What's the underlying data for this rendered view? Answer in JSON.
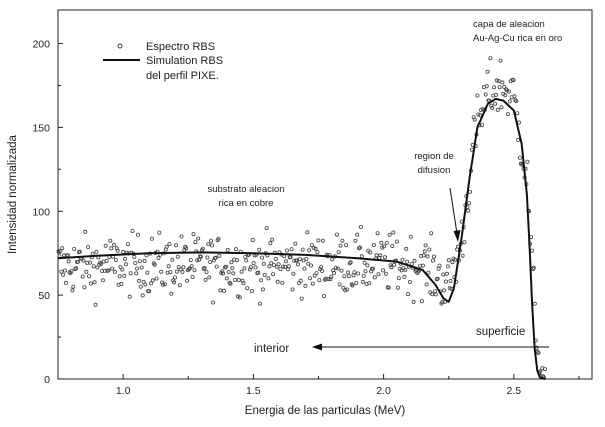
{
  "chart_data": {
    "type": "scatter",
    "title": "",
    "xlabel": "Energia de las particulas   (MeV)",
    "ylabel": "Intensidad normalizada",
    "xlim": [
      0.75,
      2.8
    ],
    "ylim": [
      0,
      220
    ],
    "xticks": [
      1.0,
      1.5,
      2.0,
      2.5
    ],
    "xtick_labels": [
      "1.0",
      "1.5",
      "2.0",
      "2.5"
    ],
    "yticks": [
      0,
      50,
      100,
      150,
      200
    ],
    "ytick_labels": [
      "0",
      "50",
      "100",
      "150",
      "200"
    ],
    "grid": false,
    "legend": {
      "placement": "top-left",
      "entries": [
        {
          "marker": "circle",
          "lines": [
            "Espectro RBS"
          ]
        },
        {
          "marker": "line",
          "lines": [
            "Simulation RBS",
            "del perfil PIXE."
          ]
        }
      ]
    },
    "series": [
      {
        "name": "Espectro RBS",
        "kind": "scatter",
        "marker": "open-circle",
        "trend": {
          "x": [
            0.75,
            1.0,
            1.5,
            2.0,
            2.15,
            2.2,
            2.25,
            2.3,
            2.35,
            2.4,
            2.45,
            2.5,
            2.55,
            2.58,
            2.6,
            2.62
          ],
          "y": [
            67,
            68,
            68,
            69,
            68,
            62,
            55,
            82,
            145,
            170,
            175,
            168,
            120,
            40,
            5,
            0
          ]
        },
        "spread": 9,
        "x_step": 0.00355
      },
      {
        "name": "Simulation RBS del perfil PIXE.",
        "kind": "line",
        "x": [
          0.75,
          0.9,
          1.1,
          1.3,
          1.5,
          1.7,
          1.9,
          2.05,
          2.15,
          2.2,
          2.23,
          2.25,
          2.27,
          2.3,
          2.33,
          2.36,
          2.4,
          2.43,
          2.46,
          2.5,
          2.53,
          2.55,
          2.56,
          2.57,
          2.58,
          2.59,
          2.6,
          2.62
        ],
        "y": [
          72,
          73.5,
          75,
          75.5,
          75,
          74,
          72,
          70,
          65,
          56,
          48,
          46,
          54,
          85,
          120,
          150,
          164,
          167,
          166,
          160,
          140,
          110,
          80,
          45,
          18,
          5,
          1,
          0
        ]
      }
    ],
    "annotations": [
      {
        "id": "alloy",
        "lines": [
          "capa de aleacion",
          "Au-Ag-Cu rica en oro"
        ]
      },
      {
        "id": "diffusion",
        "lines": [
          "region de",
          "difusion"
        ]
      },
      {
        "id": "substrate",
        "lines": [
          "substrato aleacion",
          "rica en cobre"
        ]
      },
      {
        "id": "surface",
        "lines": [
          "superficie"
        ]
      },
      {
        "id": "interior",
        "lines": [
          "interior"
        ]
      }
    ]
  }
}
